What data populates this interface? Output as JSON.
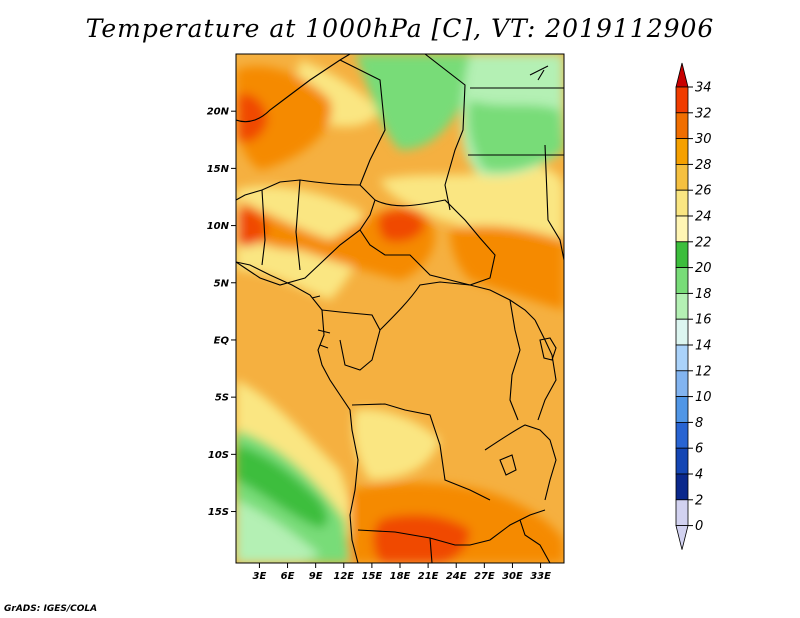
{
  "title": "Temperature at 1000hPa [C], VT: 2019112906",
  "credit": "GrADS: IGES/COLA",
  "map": {
    "lat_labels": [
      "20N",
      "15N",
      "10N",
      "5N",
      "EQ",
      "5S",
      "10S",
      "15S"
    ],
    "lat_values": [
      20,
      15,
      10,
      5,
      0,
      -5,
      -10,
      -15
    ],
    "lon_labels": [
      "3E",
      "6E",
      "9E",
      "12E",
      "15E",
      "18E",
      "21E",
      "24E",
      "27E",
      "30E",
      "33E"
    ],
    "lon_values": [
      3,
      6,
      9,
      12,
      15,
      18,
      21,
      24,
      27,
      30,
      33
    ],
    "lon_range": [
      0.5,
      35.5
    ],
    "lat_range": [
      -19.5,
      25
    ]
  },
  "colorbar": {
    "levels": [
      "34",
      "32",
      "30",
      "28",
      "26",
      "24",
      "22",
      "20",
      "18",
      "16",
      "14",
      "12",
      "10",
      "8",
      "6",
      "4",
      "2",
      "0"
    ],
    "colors": [
      "#c80000",
      "#f03c00",
      "#f06e00",
      "#f5a000",
      "#f5c040",
      "#fae682",
      "#fff5b4",
      "#3cbe3c",
      "#78dc78",
      "#b4f0b4",
      "#dcf5f0",
      "#aad2fa",
      "#82b4f0",
      "#5096e6",
      "#2864d2",
      "#1446b4",
      "#0a288c",
      "#d2d2f0"
    ]
  }
}
